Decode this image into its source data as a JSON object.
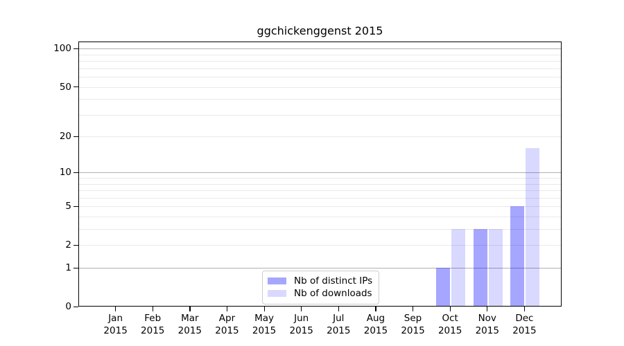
{
  "chart_data": {
    "type": "bar",
    "title": "ggchickenggenst 2015",
    "scale": "log1p",
    "categories": [
      "Jan",
      "Feb",
      "Mar",
      "Apr",
      "May",
      "Jun",
      "Jul",
      "Aug",
      "Sep",
      "Oct",
      "Nov",
      "Dec"
    ],
    "category_year": "2015",
    "series": [
      {
        "name": "Nb of distinct IPs",
        "color": "rgba(0,0,255,0.35)",
        "color_hex_on_white": "#a9a9fa",
        "values": [
          0,
          0,
          0,
          0,
          0,
          0,
          0,
          0,
          0,
          1,
          3,
          5
        ]
      },
      {
        "name": "Nb of downloads",
        "color": "rgba(0,0,255,0.15)",
        "color_hex_on_white": "#dbdbfa",
        "values": [
          0,
          0,
          0,
          0,
          0,
          0,
          0,
          0,
          0,
          3,
          3,
          16
        ]
      }
    ],
    "y_ticks": [
      0,
      1,
      2,
      5,
      10,
      20,
      50,
      100
    ],
    "grid_major": [
      1,
      10,
      100
    ],
    "grid_minor": [
      2,
      3,
      4,
      5,
      6,
      7,
      8,
      9,
      20,
      30,
      40,
      50,
      60,
      70,
      80,
      90
    ],
    "ylim": [
      0,
      114
    ],
    "grid": true,
    "legend_position": "lower center",
    "colors": {
      "grid_major": "#b0b0b0",
      "grid_minor": "#e9e9e9",
      "frame": "#000000",
      "text": "#000000",
      "legend_border": "#cccccc"
    }
  }
}
